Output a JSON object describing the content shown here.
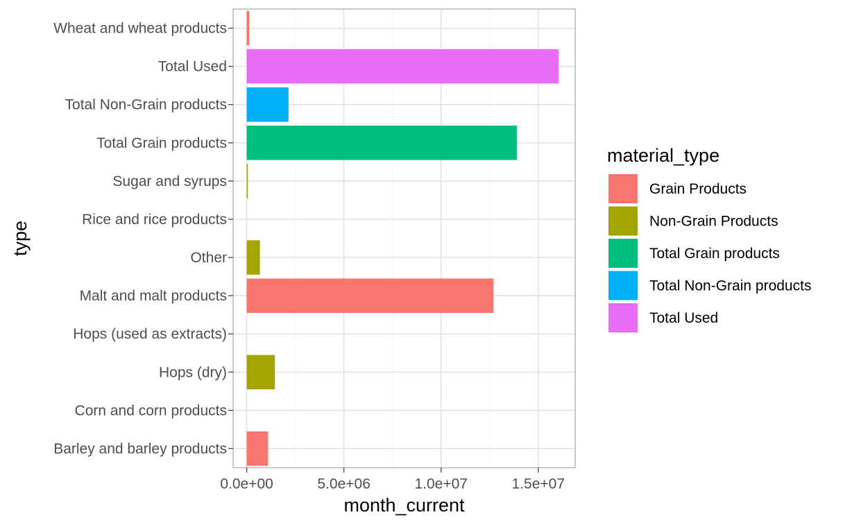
{
  "chart_data": {
    "type": "bar",
    "orientation": "horizontal",
    "xlabel": "month_current",
    "ylabel": "type",
    "xlim": [
      -700000,
      16900000
    ],
    "x_ticks": [
      0,
      5000000,
      10000000,
      15000000
    ],
    "x_tick_labels": [
      "0.0e+00",
      "5.0e+06",
      "1.0e+07",
      "1.5e+07"
    ],
    "grid": true,
    "legend": {
      "title": "material_type",
      "position": "right",
      "entries": [
        {
          "label": "Grain Products",
          "color": "#F8766D"
        },
        {
          "label": "Non-Grain Products",
          "color": "#A3A500"
        },
        {
          "label": "Total Grain products",
          "color": "#00BF7D"
        },
        {
          "label": "Total Non-Grain products",
          "color": "#00B0F6"
        },
        {
          "label": "Total Used",
          "color": "#E76BF3"
        }
      ]
    },
    "categories": [
      "Barley and barley products",
      "Corn and corn products",
      "Hops (dry)",
      "Hops (used as extracts)",
      "Malt and malt products",
      "Other",
      "Rice and rice products",
      "Sugar and syrups",
      "Total Grain products",
      "Total Non-Grain products",
      "Total Used",
      "Wheat and wheat products"
    ],
    "bars": [
      {
        "category": "Barley and barley products",
        "value": 1100000,
        "material_type": "Grain Products",
        "color": "#F8766D"
      },
      {
        "category": "Corn and corn products",
        "value": 0,
        "material_type": "Grain Products",
        "color": "#F8766D"
      },
      {
        "category": "Hops (dry)",
        "value": 1450000,
        "material_type": "Non-Grain Products",
        "color": "#A3A500"
      },
      {
        "category": "Hops (used as extracts)",
        "value": 0,
        "material_type": "Non-Grain Products",
        "color": "#A3A500"
      },
      {
        "category": "Malt and malt products",
        "value": 12700000,
        "material_type": "Grain Products",
        "color": "#F8766D"
      },
      {
        "category": "Other",
        "value": 680000,
        "material_type": "Non-Grain Products",
        "color": "#A3A500"
      },
      {
        "category": "Rice and rice products",
        "value": 0,
        "material_type": "Grain Products",
        "color": "#F8766D"
      },
      {
        "category": "Sugar and syrups",
        "value": 60000,
        "material_type": "Non-Grain Products",
        "color": "#A3A500"
      },
      {
        "category": "Total Grain products",
        "value": 13900000,
        "material_type": "Total Grain products",
        "color": "#00BF7D"
      },
      {
        "category": "Total Non-Grain products",
        "value": 2150000,
        "material_type": "Total Non-Grain products",
        "color": "#00B0F6"
      },
      {
        "category": "Total Used",
        "value": 16050000,
        "material_type": "Total Used",
        "color": "#E76BF3"
      },
      {
        "category": "Wheat and wheat products",
        "value": 130000,
        "material_type": "Grain Products",
        "color": "#F8766D"
      }
    ]
  }
}
